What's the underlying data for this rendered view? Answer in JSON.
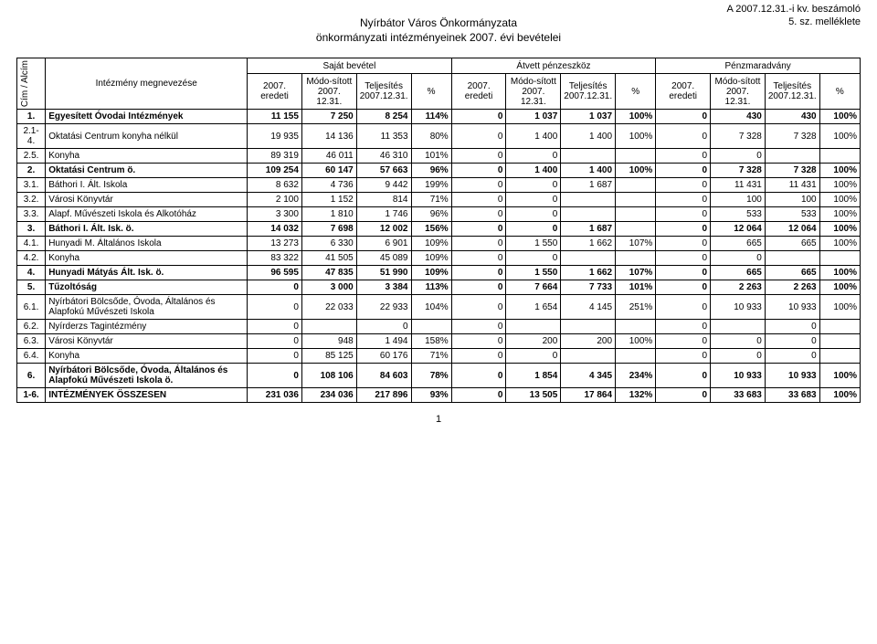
{
  "header": {
    "right_line1": "A 2007.12.31.-i kv. beszámoló",
    "right_line2": "5. sz. melléklete",
    "center_line1": "Nyírbátor Város Önkormányzata",
    "center_line2": "önkormányzati intézményeinek 2007. évi bevételei"
  },
  "table": {
    "corner_label": "Cím / Alcím",
    "name_header": "Intézmény megnevezése",
    "groups": [
      "Saját bevétel",
      "Átvett pénzeszköz",
      "Pénzmaradvány"
    ],
    "subcols": [
      "2007. eredeti",
      "Módo-sított 2007. 12.31.",
      "Teljesítés 2007.12.31.",
      "%"
    ],
    "rows": [
      {
        "bold": true,
        "code": "1.",
        "name": "Egyesített Óvodai Intézmények",
        "v": [
          "11 155",
          "7 250",
          "8 254",
          "114%",
          "0",
          "1 037",
          "1 037",
          "100%",
          "0",
          "430",
          "430",
          "100%"
        ]
      },
      {
        "code": "2.1-4.",
        "name": "Oktatási Centrum konyha nélkül",
        "v": [
          "19 935",
          "14 136",
          "11 353",
          "80%",
          "0",
          "1 400",
          "1 400",
          "100%",
          "0",
          "7 328",
          "7 328",
          "100%"
        ]
      },
      {
        "code": "2.5.",
        "name": "Konyha",
        "v": [
          "89 319",
          "46 011",
          "46 310",
          "101%",
          "0",
          "0",
          "",
          "",
          "0",
          "0",
          "",
          ""
        ]
      },
      {
        "bold": true,
        "code": "2.",
        "name": "Oktatási Centrum ö.",
        "v": [
          "109 254",
          "60 147",
          "57 663",
          "96%",
          "0",
          "1 400",
          "1 400",
          "100%",
          "0",
          "7 328",
          "7 328",
          "100%"
        ]
      },
      {
        "code": "3.1.",
        "name": "Báthori I. Ált. Iskola",
        "v": [
          "8 632",
          "4 736",
          "9 442",
          "199%",
          "0",
          "0",
          "1 687",
          "",
          "0",
          "11 431",
          "11 431",
          "100%"
        ]
      },
      {
        "code": "3.2.",
        "name": "Városi Könyvtár",
        "v": [
          "2 100",
          "1 152",
          "814",
          "71%",
          "0",
          "0",
          "",
          "",
          "0",
          "100",
          "100",
          "100%"
        ]
      },
      {
        "code": "3.3.",
        "name": "Alapf. Művészeti Iskola és Alkotóház",
        "v": [
          "3 300",
          "1 810",
          "1 746",
          "96%",
          "0",
          "0",
          "",
          "",
          "0",
          "533",
          "533",
          "100%"
        ]
      },
      {
        "bold": true,
        "code": "3.",
        "name": "Báthori I. Ált. Isk. ö.",
        "v": [
          "14 032",
          "7 698",
          "12 002",
          "156%",
          "0",
          "0",
          "1 687",
          "",
          "0",
          "12 064",
          "12 064",
          "100%"
        ]
      },
      {
        "code": "4.1.",
        "name": "Hunyadi M. Általános Iskola",
        "v": [
          "13 273",
          "6 330",
          "6 901",
          "109%",
          "0",
          "1 550",
          "1 662",
          "107%",
          "0",
          "665",
          "665",
          "100%"
        ]
      },
      {
        "code": "4.2.",
        "name": "Konyha",
        "v": [
          "83 322",
          "41 505",
          "45 089",
          "109%",
          "0",
          "0",
          "",
          "",
          "0",
          "0",
          "",
          ""
        ]
      },
      {
        "bold": true,
        "code": "4.",
        "name": "Hunyadi Mátyás  Ált. Isk. ö.",
        "v": [
          "96 595",
          "47 835",
          "51 990",
          "109%",
          "0",
          "1 550",
          "1 662",
          "107%",
          "0",
          "665",
          "665",
          "100%"
        ]
      },
      {
        "bold": true,
        "code": "5.",
        "name": "Tűzoltóság",
        "v": [
          "0",
          "3 000",
          "3 384",
          "113%",
          "0",
          "7 664",
          "7 733",
          "101%",
          "0",
          "2 263",
          "2 263",
          "100%"
        ]
      },
      {
        "code": "6.1.",
        "name": "Nyírbátori Bölcsőde, Óvoda, Általános és Alapfokú Művészeti Iskola",
        "v": [
          "0",
          "22 033",
          "22 933",
          "104%",
          "0",
          "1 654",
          "4 145",
          "251%",
          "0",
          "10 933",
          "10 933",
          "100%"
        ]
      },
      {
        "code": "6.2.",
        "name": "Nyírderzs Tagintézmény",
        "v": [
          "0",
          "",
          "0",
          "",
          "0",
          "",
          "",
          "",
          "0",
          "",
          "0",
          ""
        ]
      },
      {
        "code": "6.3.",
        "name": "Városi Könyvtár",
        "v": [
          "0",
          "948",
          "1 494",
          "158%",
          "0",
          "200",
          "200",
          "100%",
          "0",
          "0",
          "0",
          ""
        ]
      },
      {
        "code": "6.4.",
        "name": "Konyha",
        "v": [
          "0",
          "85 125",
          "60 176",
          "71%",
          "0",
          "0",
          "",
          "",
          "0",
          "0",
          "0",
          ""
        ]
      },
      {
        "bold": true,
        "code": "6.",
        "name": "Nyírbátori Bölcsőde, Óvoda, Általános és Alapfokú Művészeti Iskola ö.",
        "v": [
          "0",
          "108 106",
          "84 603",
          "78%",
          "0",
          "1 854",
          "4 345",
          "234%",
          "0",
          "10 933",
          "10 933",
          "100%"
        ]
      },
      {
        "bold": true,
        "code": "1-6.",
        "name": "INTÉZMÉNYEK ÖSSZESEN",
        "v": [
          "231 036",
          "234 036",
          "217 896",
          "93%",
          "0",
          "13 505",
          "17 864",
          "132%",
          "0",
          "33 683",
          "33 683",
          "100%"
        ]
      }
    ]
  },
  "page_number": "1"
}
